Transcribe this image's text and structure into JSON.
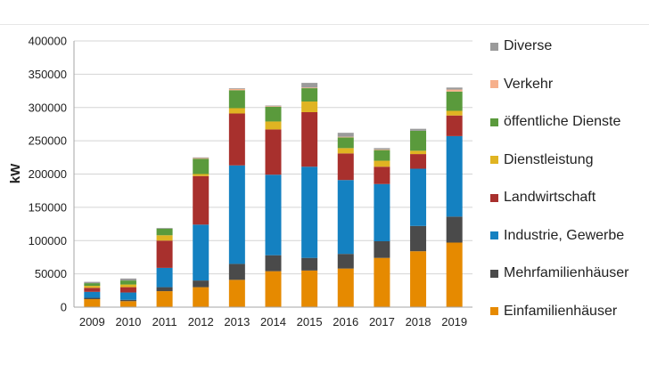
{
  "chart_data": {
    "type": "bar",
    "stacked": true,
    "title": "",
    "xlabel": "",
    "ylabel": "kW",
    "ylim": [
      0,
      400000
    ],
    "yticks": [
      0,
      50000,
      100000,
      150000,
      200000,
      250000,
      300000,
      350000,
      400000
    ],
    "ytick_labels": [
      "0",
      "50000",
      "100000",
      "150000",
      "200000",
      "250000",
      "300000",
      "350000",
      "400000"
    ],
    "grid": true,
    "legend_position": "right",
    "categories": [
      "2009",
      "2010",
      "2011",
      "2012",
      "2013",
      "2014",
      "2015",
      "2016",
      "2017",
      "2018",
      "2019"
    ],
    "series": [
      {
        "name": "Einfamilienhäuser",
        "color": "#E68A00",
        "values": [
          12000,
          9000,
          24000,
          30000,
          41000,
          54000,
          55000,
          58000,
          74000,
          84000,
          97000
        ]
      },
      {
        "name": "Mehrfamilienhäuser",
        "color": "#4A4A4A",
        "values": [
          2000,
          2000,
          6000,
          10000,
          24000,
          24000,
          19000,
          22000,
          25000,
          38000,
          39000
        ]
      },
      {
        "name": "Industrie, Gewerbe",
        "color": "#1481C1",
        "values": [
          9000,
          11000,
          29000,
          84000,
          148000,
          121000,
          137000,
          111000,
          86000,
          86000,
          121000
        ]
      },
      {
        "name": "Landwirtschaft",
        "color": "#A8302D",
        "values": [
          6000,
          8000,
          41000,
          73000,
          78000,
          68000,
          82000,
          40000,
          26000,
          22000,
          31000
        ]
      },
      {
        "name": "Dienstleistung",
        "color": "#E0B422",
        "values": [
          3000,
          4000,
          8000,
          3000,
          8000,
          12000,
          16000,
          8000,
          9000,
          5000,
          7000
        ]
      },
      {
        "name": "öffentliche Dienste",
        "color": "#5A9A3C",
        "values": [
          4000,
          6000,
          10000,
          23000,
          27000,
          22000,
          20000,
          16000,
          16000,
          30000,
          29000
        ]
      },
      {
        "name": "Verkehr",
        "color": "#F6B08C",
        "values": [
          0,
          0,
          0,
          1000,
          2000,
          1000,
          1000,
          1000,
          1000,
          0,
          3000
        ]
      },
      {
        "name": "Diverse",
        "color": "#9B9B9B",
        "values": [
          2000,
          3000,
          1000,
          1000,
          1000,
          1000,
          7000,
          6000,
          2000,
          3000,
          3000
        ]
      }
    ]
  }
}
